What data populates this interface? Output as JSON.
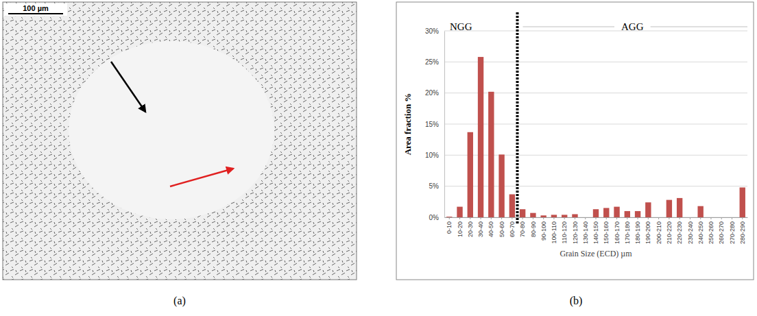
{
  "image": {
    "scale_bar": "100 µm"
  },
  "captions": [
    "(a)",
    "(b)"
  ],
  "chart_data": {
    "type": "bar",
    "categories": [
      "0-10",
      "10-20",
      "20-30",
      "30-40",
      "40-50",
      "50-60",
      "60-70",
      "70-80",
      "80-90",
      "90-100",
      "100-110",
      "110-120",
      "120-130",
      "130-140",
      "140-150",
      "150-160",
      "160-170",
      "170-180",
      "180-190",
      "190-200",
      "200-210",
      "210-220",
      "220-230",
      "230-240",
      "240-250",
      "250-260",
      "260-270",
      "270-280",
      "280-290"
    ],
    "values": [
      0.1,
      1.7,
      13.7,
      25.8,
      20.2,
      10.1,
      3.7,
      1.3,
      0.7,
      0.3,
      0.4,
      0.4,
      0.5,
      0,
      1.3,
      1.5,
      1.7,
      1.0,
      1.0,
      2.4,
      0,
      2.8,
      3.1,
      0,
      1.8,
      0,
      0,
      0,
      4.8
    ],
    "color": "#c0504d",
    "ylim": [
      0,
      30
    ],
    "yticks": [
      {
        "value": 0,
        "label": "0%"
      },
      {
        "value": 5,
        "label": "5%"
      },
      {
        "value": 10,
        "label": "10%"
      },
      {
        "value": 15,
        "label": "15%"
      },
      {
        "value": 20,
        "label": "20%"
      },
      {
        "value": 25,
        "label": "25%"
      },
      {
        "value": 30,
        "label": "30%"
      }
    ],
    "grid": true,
    "x_label": "Grain Size (ECD) µm",
    "y_label": "Area fraction %",
    "annotations": [
      {
        "text": "NGG"
      },
      {
        "text": "AGG"
      }
    ],
    "divider": {
      "before": "70-80",
      "line_style": "dotted"
    }
  }
}
